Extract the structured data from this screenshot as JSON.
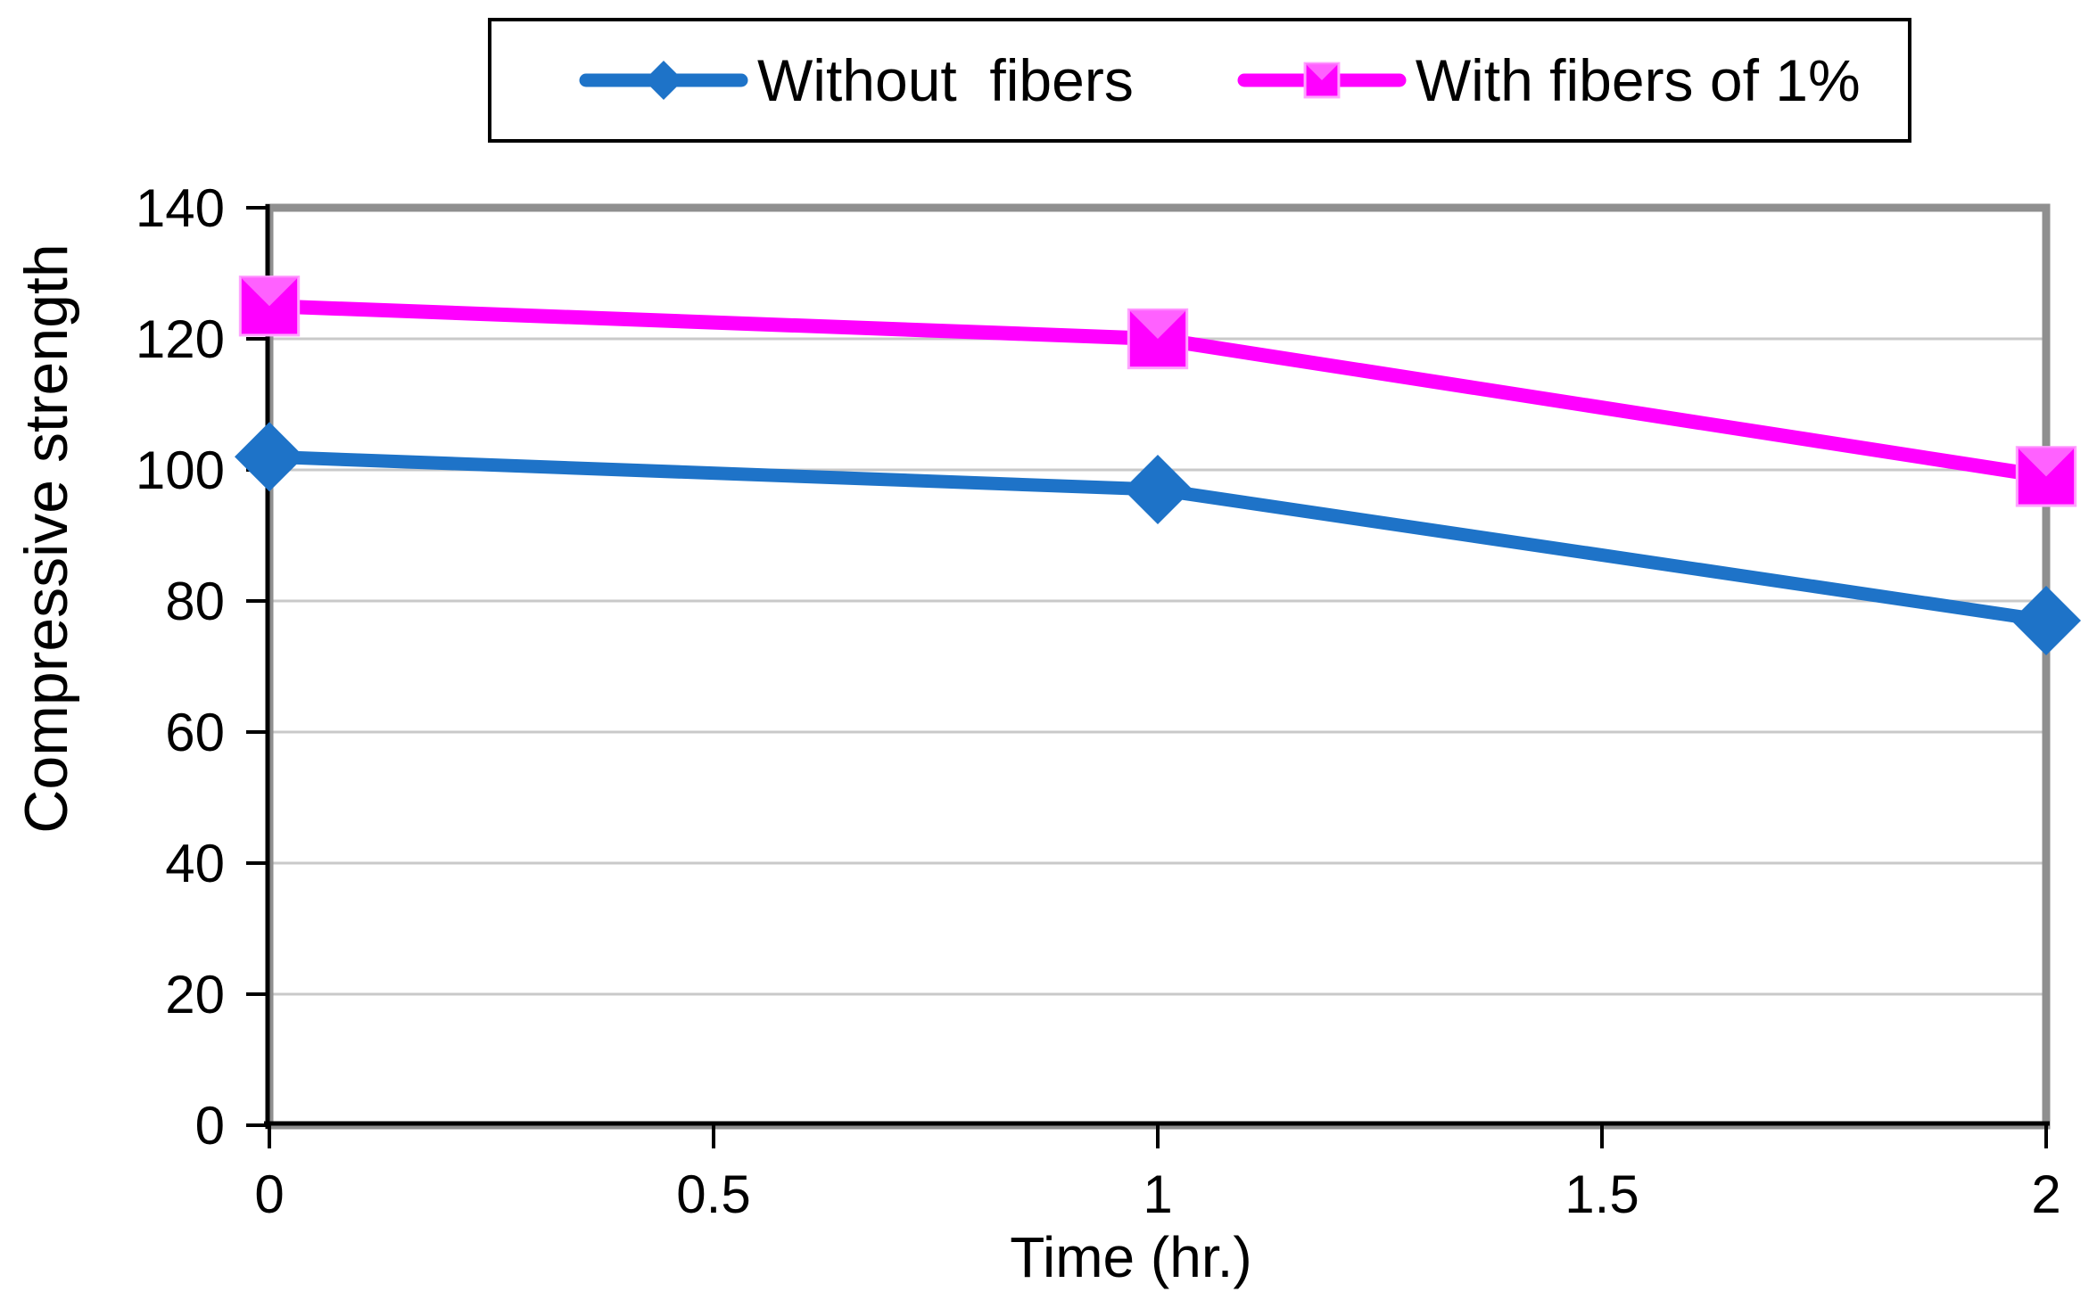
{
  "legend": {
    "border_color": "#000000",
    "items": [
      {
        "label": "Without  fibers",
        "series_index": 0
      },
      {
        "label": "With fibers of 1%",
        "series_index": 1
      }
    ]
  },
  "chart_data": {
    "type": "line",
    "title": "",
    "xlabel": "Time (hr.)",
    "ylabel": "Compressive strength",
    "x": [
      0,
      1,
      2
    ],
    "series": [
      {
        "name": "Without  fibers",
        "color": "#1E73C8",
        "marker": "diamond",
        "values": [
          102,
          97,
          77
        ]
      },
      {
        "name": "With fibers of 1%",
        "color": "#FF00FF",
        "marker": "square",
        "values": [
          125,
          120,
          99
        ]
      }
    ],
    "xlim": [
      0,
      2
    ],
    "ylim": [
      0,
      140
    ],
    "x_tick_values": [
      0,
      0.5,
      1,
      1.5,
      2
    ],
    "x_tick_labels": [
      "0",
      "0.5",
      "1",
      "1.5",
      "2"
    ],
    "y_tick_values": [
      0,
      20,
      40,
      60,
      80,
      100,
      120,
      140
    ],
    "y_tick_labels": [
      "0",
      "20",
      "40",
      "60",
      "80",
      "100",
      "120",
      "140"
    ],
    "grid": true,
    "legend_position": "top",
    "colors": {
      "gridline": "#C9C9C9",
      "plot_border": "#8F8F8F",
      "axis": "#000000",
      "tick_text": "#000000",
      "square_bevel": "#FF6CFF",
      "square_edge": "#FFA4FF"
    }
  }
}
